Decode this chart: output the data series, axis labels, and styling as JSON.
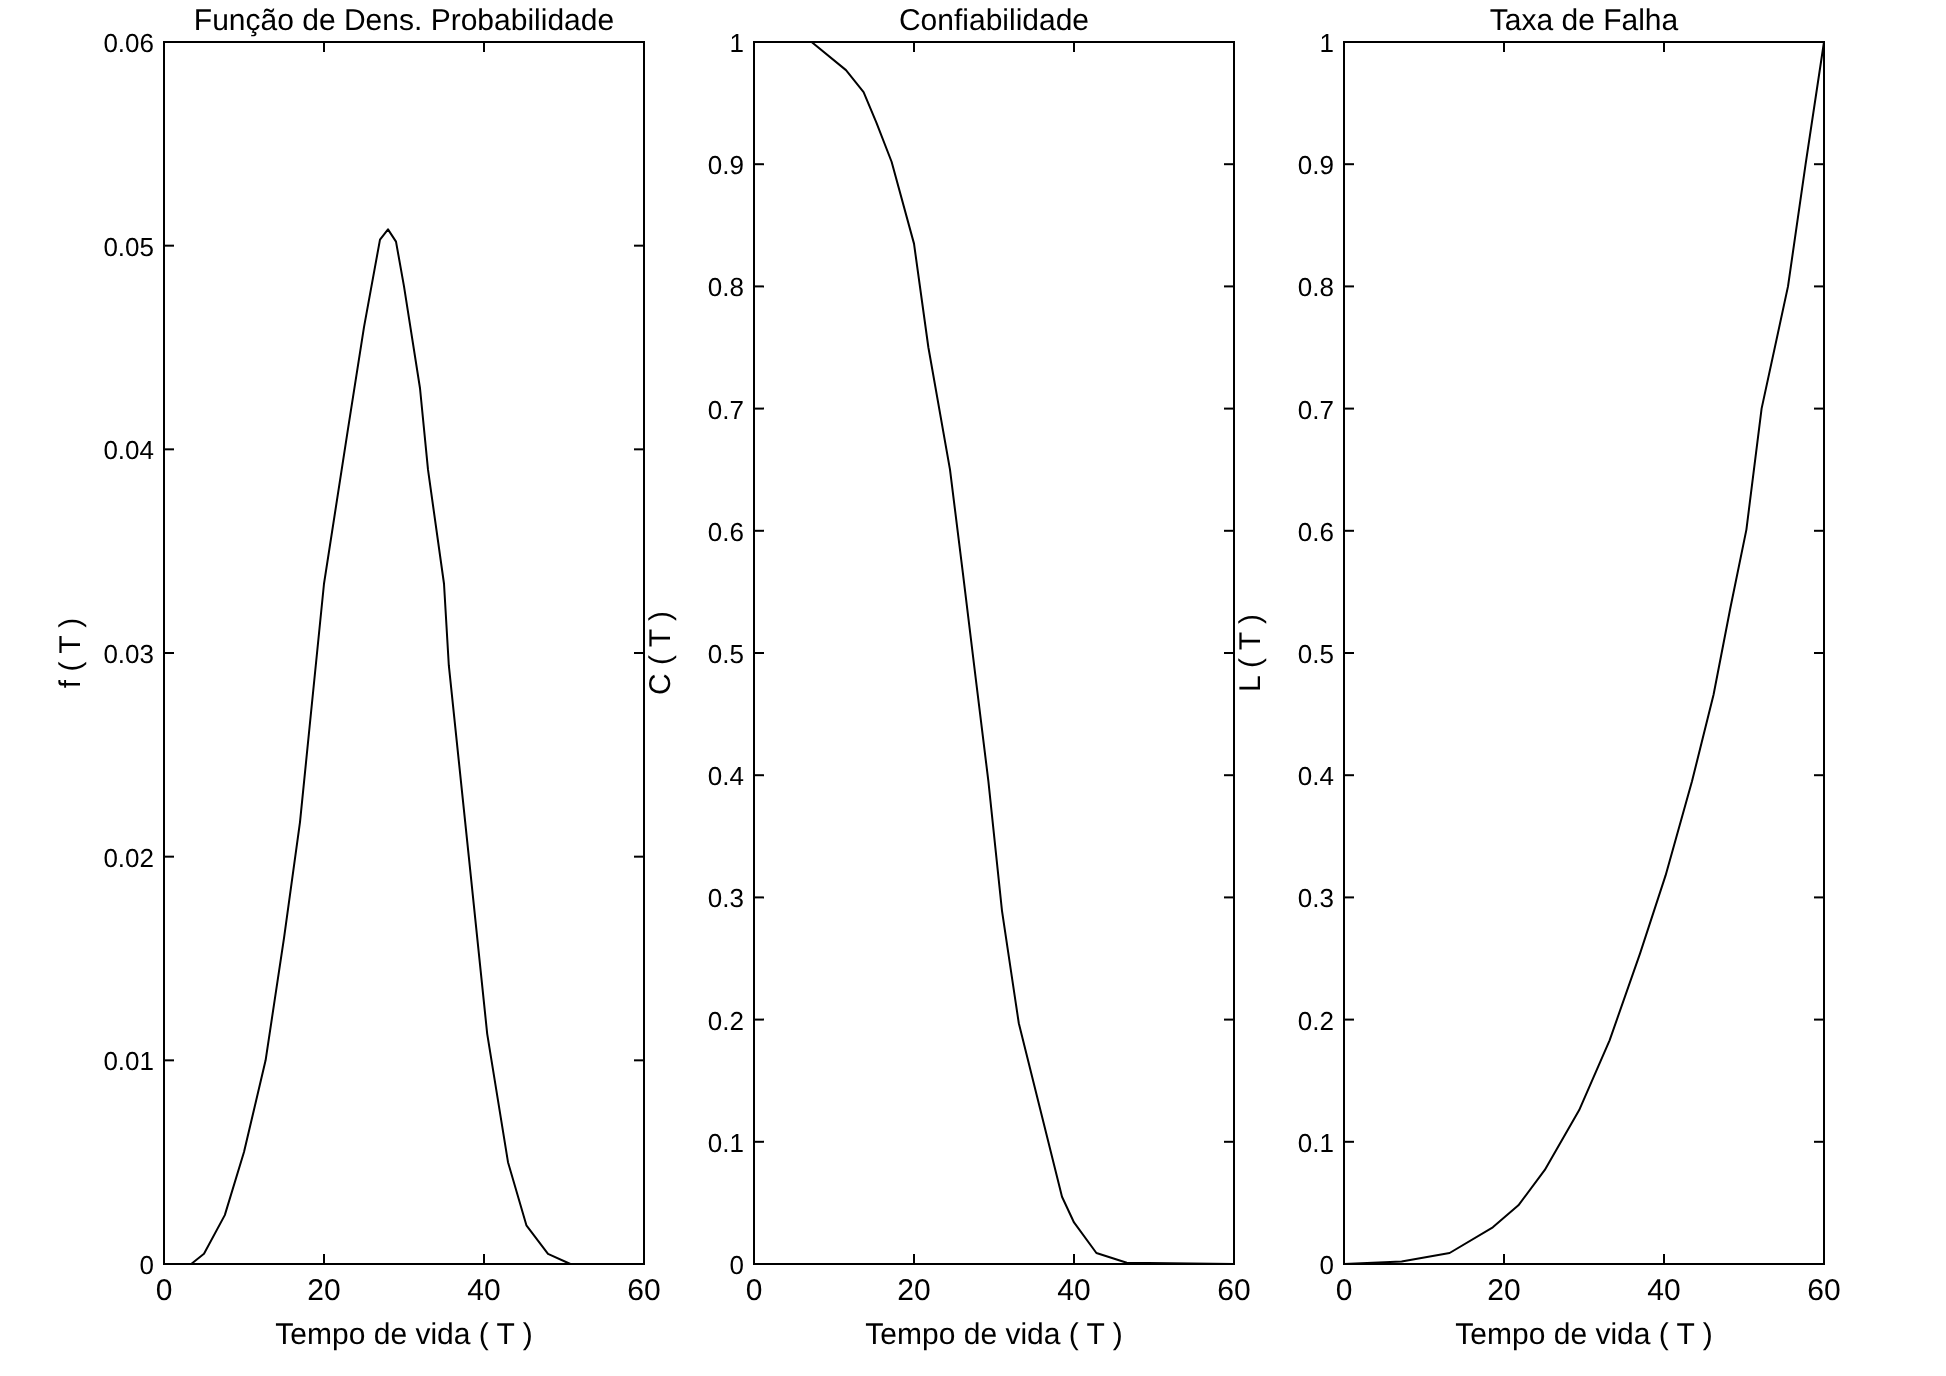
{
  "chart_data": [
    {
      "type": "line",
      "title": "Função de Dens. Probabilidade",
      "xlabel": "Tempo de vida ( T )",
      "ylabel": "f ( T )",
      "color": "#000000",
      "xlim": [
        0,
        60
      ],
      "ylim": [
        0,
        0.06
      ],
      "xticks": [
        0,
        20,
        40,
        60
      ],
      "yticks": [
        0,
        0.01,
        0.02,
        0.03,
        0.04,
        0.05,
        0.06
      ],
      "x": [
        0,
        3.4,
        5,
        7.6,
        10,
        12.7,
        15,
        17,
        20,
        23,
        25,
        27,
        28,
        29,
        30,
        32,
        33,
        35,
        35.6,
        38.1,
        40.4,
        43,
        45.3,
        48,
        50.8,
        60
      ],
      "values": [
        0,
        0,
        0.0005,
        0.0024,
        0.0055,
        0.01,
        0.016,
        0.0217,
        0.0334,
        0.041,
        0.046,
        0.0503,
        0.0508,
        0.0502,
        0.048,
        0.043,
        0.039,
        0.0334,
        0.0294,
        0.02,
        0.0113,
        0.005,
        0.0019,
        0.0005,
        0,
        0
      ]
    },
    {
      "type": "line",
      "title": "Confiabilidade",
      "xlabel": "Tempo de vida ( T )",
      "ylabel": "C ( T )",
      "color": "#000000",
      "xlim": [
        0,
        60
      ],
      "ylim": [
        0,
        1
      ],
      "xticks": [
        0,
        20,
        40,
        60
      ],
      "yticks": [
        0,
        0.1,
        0.2,
        0.3,
        0.4,
        0.5,
        0.6,
        0.7,
        0.8,
        0.9,
        1
      ],
      "x": [
        0,
        7.2,
        11.5,
        13.7,
        15.3,
        17.2,
        20,
        21.8,
        24.5,
        26.1,
        27.7,
        29.3,
        31,
        33.1,
        35.8,
        38.5,
        40,
        42.8,
        46.6,
        60
      ],
      "values": [
        1,
        1,
        0.977,
        0.959,
        0.934,
        0.902,
        0.835,
        0.75,
        0.65,
        0.566,
        0.48,
        0.395,
        0.289,
        0.197,
        0.126,
        0.055,
        0.034,
        0.009,
        0.001,
        0
      ]
    },
    {
      "type": "line",
      "title": "Taxa de Falha",
      "xlabel": "Tempo de vida ( T )",
      "ylabel": "L ( T )",
      "color": "#000000",
      "xlim": [
        0,
        60
      ],
      "ylim": [
        0,
        1
      ],
      "xticks": [
        0,
        20,
        40,
        60
      ],
      "yticks": [
        0,
        0.1,
        0.2,
        0.3,
        0.4,
        0.5,
        0.6,
        0.7,
        0.8,
        0.9,
        1
      ],
      "x": [
        0,
        7.2,
        13.2,
        18.6,
        21.8,
        25.1,
        29.4,
        33.2,
        37,
        40.2,
        43.5,
        46.2,
        48.3,
        50.3,
        52.2,
        55.5,
        57.7,
        60
      ],
      "values": [
        0,
        0.002,
        0.009,
        0.03,
        0.048,
        0.077,
        0.126,
        0.183,
        0.254,
        0.318,
        0.395,
        0.466,
        0.537,
        0.601,
        0.7,
        0.8,
        0.9,
        1
      ]
    }
  ]
}
